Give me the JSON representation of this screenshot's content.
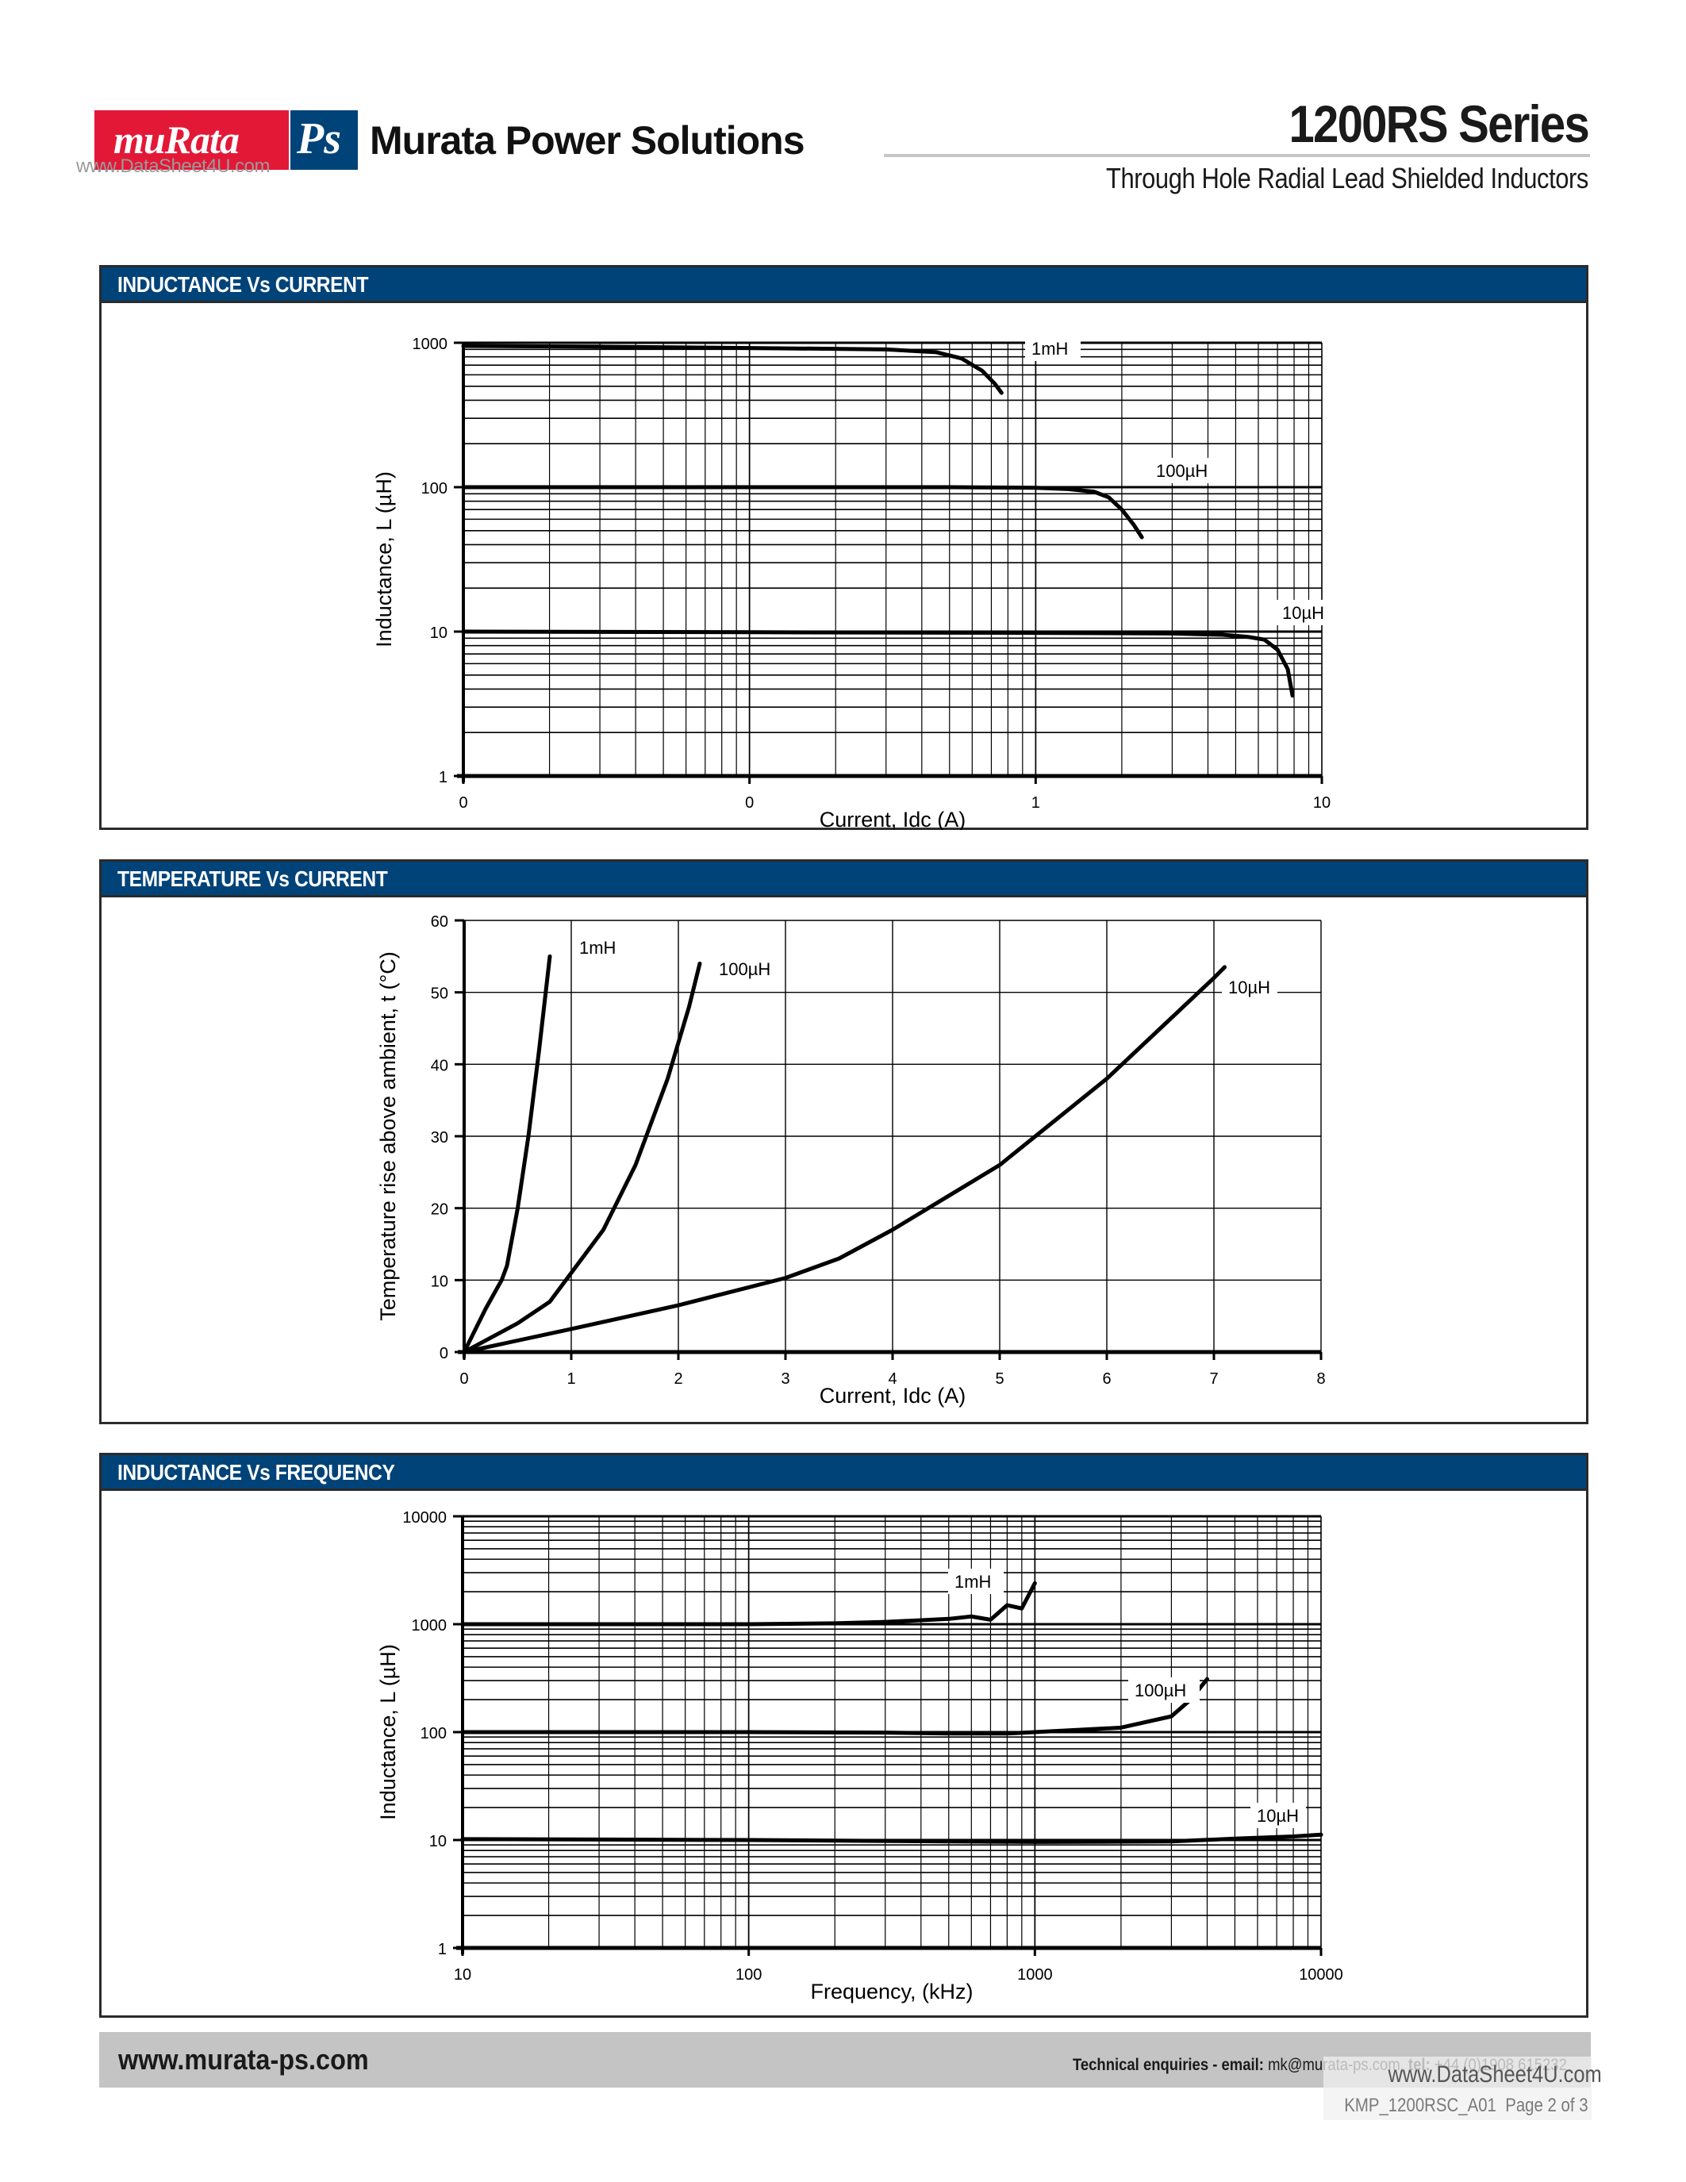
{
  "header": {
    "logo_left": "muRata",
    "logo_right": "Ps",
    "brand": "Murata Power Solutions",
    "watermark": "www.DataSheet4U.com",
    "series_title": "1200RS Series",
    "subtitle": "Through Hole Radial Lead Shielded Inductors"
  },
  "panels": [
    {
      "title": "INDUCTANCE Vs CURRENT"
    },
    {
      "title": "TEMPERATURE Vs CURRENT"
    },
    {
      "title": "INDUCTANCE Vs FREQUENCY"
    }
  ],
  "chart_data": [
    {
      "type": "line",
      "title": "INDUCTANCE Vs CURRENT",
      "xlabel": "Current, Idc (A)",
      "ylabel": "Inductance, L (µH)",
      "xscale": "log",
      "yscale": "log",
      "xlim": [
        0.01,
        10
      ],
      "ylim": [
        1,
        1000
      ],
      "x_tick_labels": [
        "0",
        "0",
        "1",
        "10"
      ],
      "y_tick_labels": [
        "1",
        "10",
        "100",
        "1000"
      ],
      "grid": true,
      "series": [
        {
          "name": "1mH",
          "x": [
            0.01,
            0.03,
            0.1,
            0.3,
            0.45,
            0.55,
            0.65,
            0.72,
            0.76
          ],
          "y": [
            950,
            940,
            920,
            900,
            860,
            780,
            640,
            520,
            450
          ]
        },
        {
          "name": "100µH",
          "x": [
            0.01,
            0.1,
            0.5,
            1.0,
            1.3,
            1.6,
            1.8,
            2.0,
            2.2,
            2.35
          ],
          "y": [
            100,
            100,
            100,
            99,
            97,
            93,
            85,
            70,
            55,
            45
          ]
        },
        {
          "name": "10µH",
          "x": [
            0.01,
            0.1,
            1,
            3,
            4.5,
            5.5,
            6.3,
            7.0,
            7.6,
            7.9
          ],
          "y": [
            10,
            9.9,
            9.8,
            9.7,
            9.5,
            9.2,
            8.8,
            7.5,
            5.5,
            3.6
          ]
        }
      ],
      "annotations": [
        "1mH",
        "100µH",
        "10µH"
      ]
    },
    {
      "type": "line",
      "title": "TEMPERATURE Vs CURRENT",
      "xlabel": "Current, Idc (A)",
      "ylabel": "Temperature rise above ambient, t (°C)",
      "xlim": [
        0,
        8
      ],
      "ylim": [
        0,
        60
      ],
      "x_ticks": [
        0,
        1,
        2,
        3,
        4,
        5,
        6,
        7,
        8
      ],
      "y_ticks": [
        0,
        10,
        20,
        30,
        40,
        50,
        60
      ],
      "grid": true,
      "series": [
        {
          "name": "1mH",
          "x": [
            0,
            0.2,
            0.35,
            0.4,
            0.5,
            0.6,
            0.7,
            0.8
          ],
          "y": [
            0,
            6,
            10,
            12,
            20,
            30,
            42,
            55
          ]
        },
        {
          "name": "100µH",
          "x": [
            0,
            0.5,
            0.8,
            1.0,
            1.3,
            1.6,
            1.9,
            2.1,
            2.2
          ],
          "y": [
            0,
            4,
            7,
            11,
            17,
            26,
            38,
            48,
            54
          ]
        },
        {
          "name": "10µH",
          "x": [
            0,
            1,
            2,
            3,
            3.5,
            4,
            4.5,
            5,
            5.5,
            6,
            6.5,
            7,
            7.1
          ],
          "y": [
            0,
            3.2,
            6.5,
            10.3,
            13,
            17,
            21.5,
            26,
            32,
            38,
            45,
            52,
            53.5
          ]
        }
      ],
      "annotations": [
        "1mH",
        "100µH",
        "10µH"
      ]
    },
    {
      "type": "line",
      "title": "INDUCTANCE Vs FREQUENCY",
      "xlabel": "Frequency, (kHz)",
      "ylabel": "Inductance, L (µH)",
      "xscale": "log",
      "yscale": "log",
      "xlim": [
        10,
        10000
      ],
      "ylim": [
        1,
        10000
      ],
      "x_ticks": [
        10,
        100,
        1000,
        10000
      ],
      "y_ticks": [
        1,
        10,
        100,
        1000,
        10000
      ],
      "grid": true,
      "series": [
        {
          "name": "1mH",
          "x": [
            10,
            100,
            200,
            300,
            500,
            600,
            700,
            800,
            900,
            1000
          ],
          "y": [
            1000,
            1000,
            1020,
            1050,
            1120,
            1180,
            1100,
            1500,
            1400,
            2400
          ]
        },
        {
          "name": "100µH",
          "x": [
            10,
            100,
            300,
            500,
            800,
            1000,
            2000,
            3000,
            3500,
            4000
          ],
          "y": [
            100,
            100,
            99,
            97,
            97,
            100,
            110,
            140,
            200,
            310
          ]
        },
        {
          "name": "10µH",
          "x": [
            10,
            100,
            1000,
            3000,
            5000,
            8000,
            10000
          ],
          "y": [
            10.2,
            10.0,
            9.6,
            9.7,
            10.3,
            10.8,
            11.2
          ]
        }
      ],
      "annotations": [
        "1mH",
        "100µH",
        "10µH"
      ]
    }
  ],
  "footer": {
    "url": "www.murata-ps.com",
    "tech_label": "Technical enquiries - email:",
    "email": "mk@murata-ps.com,",
    "tel_label": "tel:",
    "tel": "+44 (0)1908 615232",
    "watermark": "www.DataSheet4U.com",
    "doc_ref": "KMP_1200RSC_A01",
    "page": "Page 2 of 3"
  }
}
